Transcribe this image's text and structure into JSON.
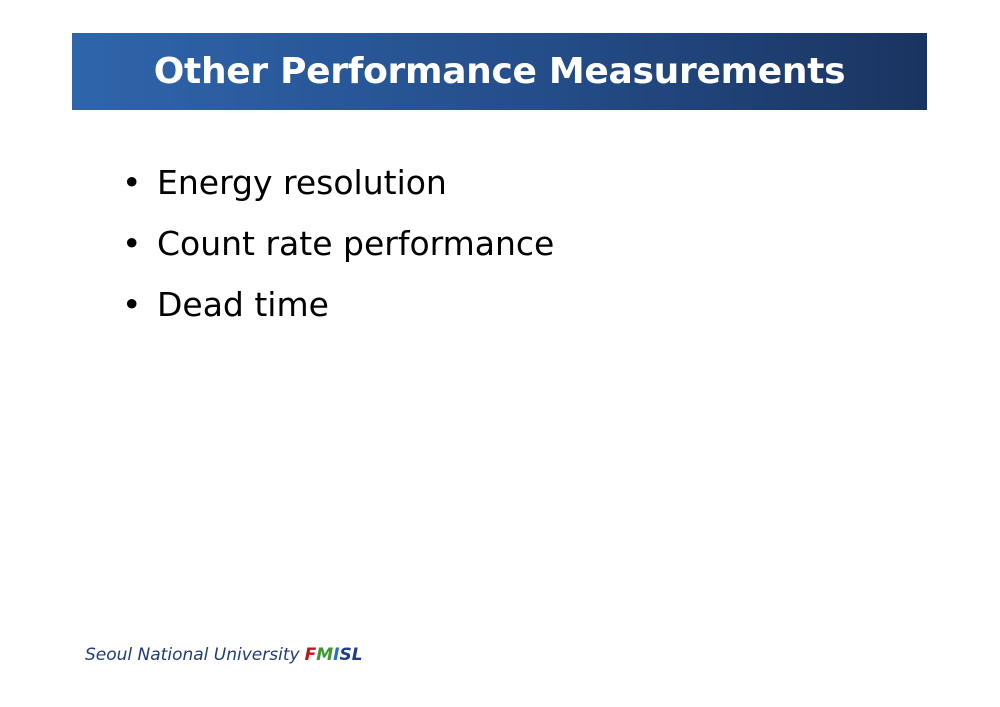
{
  "header": {
    "title": "Other Performance Measurements"
  },
  "bullets": [
    "Energy resolution",
    "Count rate performance",
    "Dead time"
  ],
  "footer": {
    "text": "Seoul National University",
    "logo": [
      "F",
      "M",
      "I",
      "S",
      "L"
    ]
  }
}
